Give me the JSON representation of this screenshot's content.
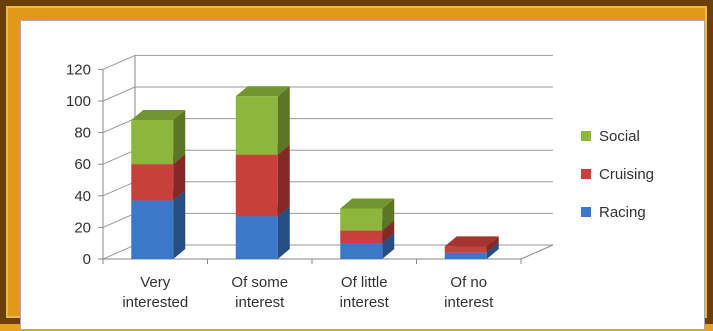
{
  "chart_data": {
    "type": "bar",
    "stacked": true,
    "style": "3d-column",
    "categories": [
      "Very interested",
      "Of some interest",
      "Of little interest",
      "Of no interest"
    ],
    "category_lines": [
      [
        "Very",
        "interested"
      ],
      [
        "Of some",
        "interest"
      ],
      [
        "Of little",
        "interest"
      ],
      [
        "Of no",
        "interest"
      ]
    ],
    "series": [
      {
        "name": "Racing",
        "values": [
          37,
          27,
          10,
          4
        ],
        "color": "#3b78c9"
      },
      {
        "name": "Cruising",
        "values": [
          23,
          39,
          8,
          4
        ],
        "color": "#c9403b"
      },
      {
        "name": "Social",
        "values": [
          28,
          37,
          14,
          0
        ],
        "color": "#8cb63c"
      }
    ],
    "ylim": [
      0,
      120
    ],
    "yticks": [
      0,
      20,
      40,
      60,
      80,
      100,
      120
    ],
    "grid": true,
    "legend_position": "right",
    "legend_order": [
      "Social",
      "Cruising",
      "Racing"
    ],
    "title": "",
    "xlabel": "",
    "ylabel": ""
  }
}
